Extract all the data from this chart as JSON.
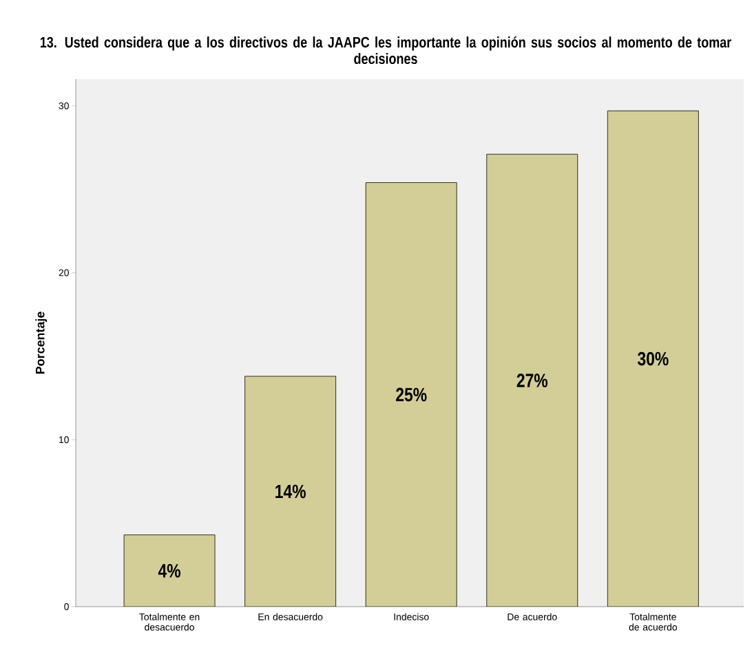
{
  "chart_data": {
    "type": "bar",
    "title": "13. Usted considera que a los directivos de la JAAPC les importante la opinión sus socios al momento de tomar decisiones",
    "ylabel": "Porcentaje",
    "categories": [
      "Totalmente en desacuerdo",
      "En desacuerdo",
      "Indeciso",
      "De acuerdo",
      "Totalmente de acuerdo"
    ],
    "values": [
      4.3,
      13.8,
      25.4,
      27.1,
      29.7
    ],
    "value_labels": [
      "4%",
      "14%",
      "25%",
      "27%",
      "30%"
    ],
    "color": "#d3ce97",
    "ylim": [
      0,
      31.6
    ],
    "yticks": [
      0,
      10,
      20,
      30
    ],
    "grid": false
  }
}
